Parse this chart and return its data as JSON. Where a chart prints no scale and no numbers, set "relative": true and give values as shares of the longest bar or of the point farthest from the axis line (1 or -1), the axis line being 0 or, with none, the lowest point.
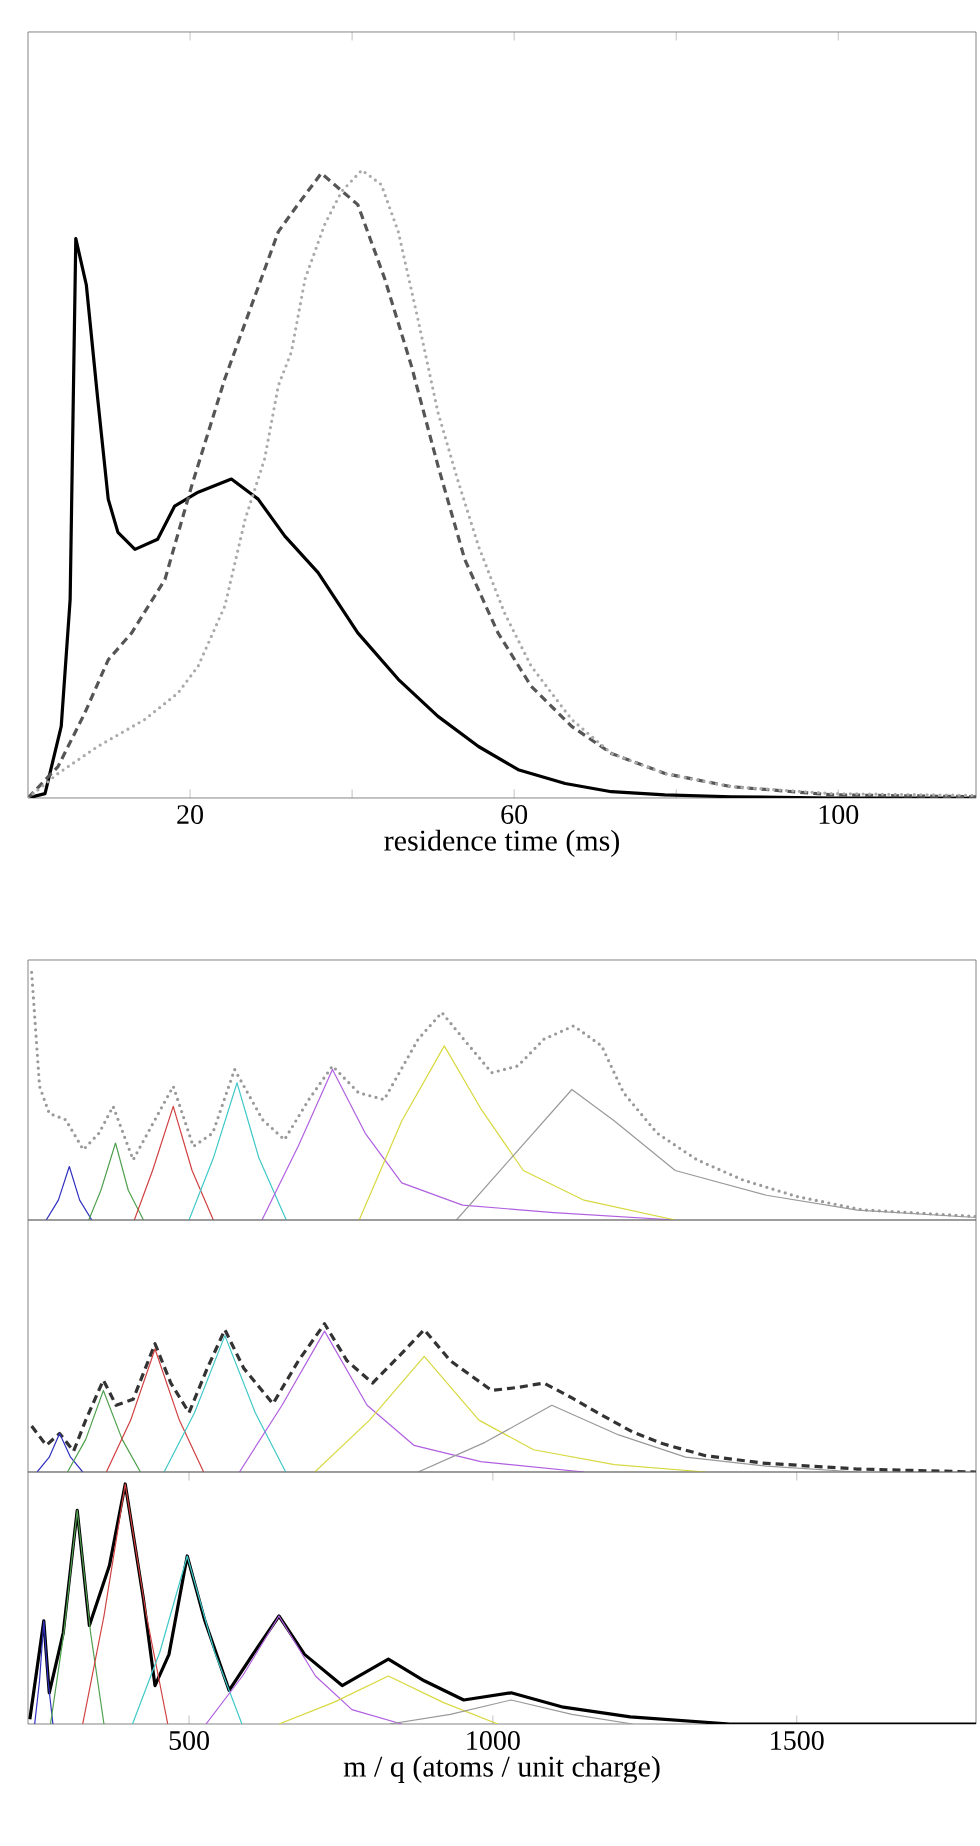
{
  "chart_data": [
    {
      "type": "line",
      "relative": true,
      "xlabel": "residence time (ms)",
      "xlim": [
        0,
        117
      ],
      "xticks": [
        20,
        {
          "value": 40,
          "label": null
        },
        60,
        {
          "value": 80,
          "label": null
        },
        100
      ],
      "tick_labels": "x",
      "series": [
        {
          "color": "#000000",
          "line_style": "solid",
          "x": [
            0,
            2.1,
            4.1,
            5.2,
            5.9,
            7.2,
            8.6,
            9.9,
            11.1,
            13.2,
            16.0,
            18.1,
            21.0,
            25.1,
            28.4,
            31.7,
            35.8,
            40.7,
            45.7,
            50.6,
            55.6,
            60.5,
            66.3,
            72.0,
            78.6,
            86.8,
            99.2,
            117
          ],
          "values": [
            0,
            0.007,
            0.114,
            0.316,
            0.891,
            0.817,
            0.636,
            0.476,
            0.423,
            0.396,
            0.412,
            0.465,
            0.487,
            0.508,
            0.476,
            0.417,
            0.359,
            0.263,
            0.189,
            0.13,
            0.082,
            0.045,
            0.023,
            0.01,
            0.005,
            0.002,
            0,
            0
          ]
        },
        {
          "color": "#555555",
          "line_style": "dashed",
          "x": [
            0,
            3.7,
            7.0,
            9.9,
            12.8,
            16.9,
            20.2,
            24.3,
            27.6,
            30.9,
            33.3,
            36.2,
            40.7,
            44.0,
            47.3,
            50.6,
            53.9,
            58.0,
            62.1,
            67.1,
            72.0,
            78.6,
            86.8,
            99.2,
            117
          ],
          "values": [
            0,
            0.05,
            0.135,
            0.22,
            0.263,
            0.348,
            0.497,
            0.668,
            0.785,
            0.902,
            0.945,
            0.995,
            0.945,
            0.828,
            0.689,
            0.529,
            0.38,
            0.263,
            0.178,
            0.114,
            0.071,
            0.039,
            0.018,
            0.005,
            0.002
          ]
        },
        {
          "color": "#aaaaaa",
          "line_style": "dotted",
          "x": [
            0,
            3.7,
            8.6,
            14.4,
            18.5,
            21.0,
            24.3,
            26.8,
            29.2,
            30.9,
            32.5,
            34.2,
            36.6,
            38.7,
            41.2,
            43.6,
            45.7,
            48.1,
            50.6,
            53.0,
            55.6,
            58.8,
            62.1,
            67.1,
            72.0,
            78.6,
            86.8,
            99.2,
            117
          ],
          "values": [
            0,
            0.039,
            0.082,
            0.125,
            0.167,
            0.21,
            0.306,
            0.444,
            0.54,
            0.657,
            0.71,
            0.827,
            0.913,
            0.966,
            1.0,
            0.977,
            0.902,
            0.764,
            0.614,
            0.508,
            0.401,
            0.295,
            0.21,
            0.125,
            0.071,
            0.039,
            0.018,
            0.007,
            0.004
          ]
        }
      ]
    },
    {
      "type": "line",
      "relative": true,
      "xlim": [
        235,
        1795
      ],
      "tick_labels": false,
      "series": [
        {
          "color": "#999999",
          "line_style": "dotted",
          "x": [
            241,
            254,
            270,
            297,
            326,
            352,
            375,
            408,
            444,
            474,
            507,
            539,
            575,
            621,
            657,
            697,
            736,
            779,
            821,
            877,
            916,
            952,
            998,
            1041,
            1084,
            1133,
            1179,
            1215,
            1270,
            1336,
            1411,
            1500,
            1608,
            1795
          ],
          "values": [
            1.0,
            0.54,
            0.43,
            0.405,
            0.284,
            0.351,
            0.459,
            0.243,
            0.405,
            0.54,
            0.297,
            0.351,
            0.608,
            0.405,
            0.324,
            0.486,
            0.622,
            0.514,
            0.486,
            0.73,
            0.838,
            0.73,
            0.595,
            0.622,
            0.73,
            0.784,
            0.703,
            0.514,
            0.351,
            0.243,
            0.162,
            0.095,
            0.041,
            0.014
          ]
        },
        {
          "color": "#3030c0",
          "x": [
            265,
            285,
            303,
            320,
            340
          ],
          "values": [
            0,
            0.08,
            0.216,
            0.08,
            0
          ]
        },
        {
          "color": "#50a050",
          "x": [
            335,
            355,
            379,
            400,
            425
          ],
          "values": [
            0,
            0.12,
            0.311,
            0.12,
            0
          ]
        },
        {
          "color": "#d04040",
          "x": [
            410,
            440,
            474,
            505,
            540
          ],
          "values": [
            0,
            0.2,
            0.459,
            0.2,
            0
          ]
        },
        {
          "color": "#40c8c8",
          "x": [
            500,
            540,
            579,
            615,
            660
          ],
          "values": [
            0,
            0.25,
            0.554,
            0.25,
            0
          ]
        },
        {
          "color": "#b060e0",
          "x": [
            620,
            680,
            736,
            790,
            850,
            950,
            1100,
            1300
          ],
          "values": [
            0,
            0.3,
            0.608,
            0.35,
            0.15,
            0.06,
            0.03,
            0
          ]
        },
        {
          "color": "#d8d840",
          "x": [
            780,
            850,
            920,
            980,
            1050,
            1150,
            1300
          ],
          "values": [
            0,
            0.4,
            0.703,
            0.45,
            0.2,
            0.08,
            0
          ]
        },
        {
          "color": "#999999",
          "x": [
            940,
            1030,
            1130,
            1200,
            1300,
            1450,
            1600,
            1795
          ],
          "values": [
            0,
            0.25,
            0.527,
            0.4,
            0.2,
            0.1,
            0.04,
            0.01
          ]
        }
      ]
    },
    {
      "type": "line",
      "relative": true,
      "xlim": [
        235,
        1795
      ],
      "tick_labels": false,
      "series": [
        {
          "color": "#333333",
          "line_style": "dashed",
          "x": [
            241,
            265,
            287,
            310,
            330,
            359,
            380,
            408,
            444,
            470,
            500,
            530,
            559,
            590,
            638,
            680,
            723,
            760,
            802,
            850,
            887,
            930,
            998,
            1040,
            1084,
            1130,
            1172,
            1230,
            1280,
            1350,
            1444,
            1600,
            1795
          ],
          "values": [
            0.31,
            0.18,
            0.26,
            0.14,
            0.35,
            0.62,
            0.45,
            0.49,
            0.865,
            0.6,
            0.4,
            0.7,
            0.96,
            0.7,
            0.46,
            0.75,
            1.0,
            0.75,
            0.6,
            0.8,
            0.96,
            0.75,
            0.55,
            0.57,
            0.6,
            0.5,
            0.4,
            0.27,
            0.19,
            0.11,
            0.06,
            0.02,
            0
          ]
        },
        {
          "color": "#3030c0",
          "x": [
            250,
            270,
            287,
            305,
            325
          ],
          "values": [
            0,
            0.1,
            0.26,
            0.1,
            0
          ]
        },
        {
          "color": "#50a050",
          "x": [
            300,
            330,
            359,
            390,
            420
          ],
          "values": [
            0,
            0.22,
            0.55,
            0.22,
            0
          ]
        },
        {
          "color": "#d04040",
          "x": [
            364,
            404,
            444,
            484,
            524
          ],
          "values": [
            0,
            0.35,
            0.83,
            0.35,
            0
          ]
        },
        {
          "color": "#40c8c8",
          "x": [
            459,
            509,
            559,
            609,
            659
          ],
          "values": [
            0,
            0.4,
            0.92,
            0.4,
            0
          ]
        },
        {
          "color": "#b060e0",
          "x": [
            583,
            653,
            723,
            793,
            870,
            980,
            1150
          ],
          "values": [
            0,
            0.45,
            0.95,
            0.45,
            0.18,
            0.07,
            0
          ]
        },
        {
          "color": "#d8d840",
          "x": [
            707,
            797,
            887,
            977,
            1067,
            1200,
            1350
          ],
          "values": [
            0,
            0.35,
            0.78,
            0.35,
            0.15,
            0.05,
            0
          ]
        },
        {
          "color": "#999999",
          "x": [
            877,
            987,
            1097,
            1207,
            1317,
            1450,
            1600
          ],
          "values": [
            0,
            0.2,
            0.45,
            0.25,
            0.1,
            0.04,
            0
          ]
        }
      ]
    },
    {
      "type": "line",
      "relative": true,
      "xlabel": "m / q (atoms / unit charge)",
      "xlim": [
        235,
        1795
      ],
      "xticks": [
        500,
        1000,
        1500
      ],
      "tick_labels": "x",
      "series": [
        {
          "color": "#000000",
          "line_style": "solid",
          "x": [
            238,
            261,
            270,
            293,
            316,
            336,
            369,
            395,
            425,
            444,
            467,
            497,
            526,
            566,
            605,
            648,
            690,
            752,
            828,
            887,
            952,
            1030,
            1116,
            1226,
            1390,
            1795
          ],
          "values": [
            0.02,
            0.43,
            0.13,
            0.38,
            0.89,
            0.41,
            0.66,
            1.0,
            0.52,
            0.16,
            0.29,
            0.7,
            0.43,
            0.14,
            0.29,
            0.45,
            0.29,
            0.16,
            0.27,
            0.18,
            0.1,
            0.13,
            0.07,
            0.03,
            0,
            0
          ]
        },
        {
          "color": "#3030c0",
          "x": [
            246,
            254,
            261,
            268,
            276
          ],
          "values": [
            0,
            0.18,
            0.43,
            0.18,
            0
          ]
        },
        {
          "color": "#50a050",
          "x": [
            272,
            294,
            316,
            338,
            360
          ],
          "values": [
            0,
            0.38,
            0.89,
            0.38,
            0
          ]
        },
        {
          "color": "#d04040",
          "x": [
            325,
            360,
            395,
            430,
            465
          ],
          "values": [
            0,
            0.45,
            1.0,
            0.45,
            0
          ]
        },
        {
          "color": "#40c8c8",
          "x": [
            407,
            452,
            497,
            542,
            587
          ],
          "values": [
            0,
            0.3,
            0.7,
            0.3,
            0
          ]
        },
        {
          "color": "#b060e0",
          "x": [
            528,
            588,
            648,
            708,
            768,
            850
          ],
          "values": [
            0,
            0.2,
            0.45,
            0.2,
            0.06,
            0
          ]
        },
        {
          "color": "#d8d840",
          "x": [
            648,
            738,
            828,
            918,
            1008
          ],
          "values": [
            0,
            0.09,
            0.2,
            0.09,
            0
          ]
        },
        {
          "color": "#999999",
          "x": [
            830,
            930,
            1030,
            1130,
            1230
          ],
          "values": [
            0,
            0.04,
            0.1,
            0.04,
            0
          ]
        }
      ]
    }
  ]
}
